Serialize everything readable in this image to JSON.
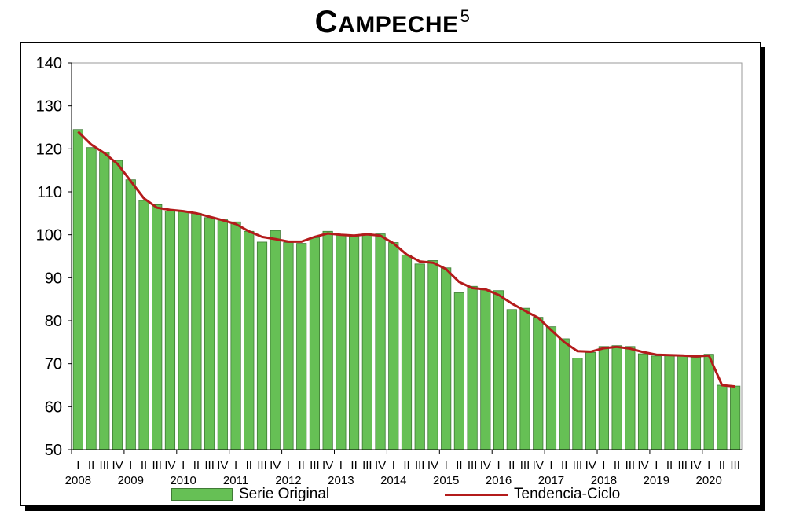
{
  "title": "Campeche",
  "title_superscript": "5",
  "chart_data": {
    "type": "bar",
    "ylim": [
      50,
      140
    ],
    "yticks": [
      50,
      60,
      70,
      80,
      90,
      100,
      110,
      120,
      130,
      140
    ],
    "quarter_labels": [
      "I",
      "II",
      "III",
      "IV",
      "I",
      "II",
      "III",
      "IV",
      "I",
      "II",
      "III",
      "IV",
      "I",
      "II",
      "III",
      "IV",
      "I",
      "II",
      "III",
      "IV",
      "I",
      "II",
      "III",
      "IV",
      "I",
      "II",
      "III",
      "IV",
      "I",
      "II",
      "III",
      "IV",
      "I",
      "II",
      "III",
      "IV",
      "I",
      "II",
      "III",
      "IV",
      "I",
      "II",
      "III",
      "IV",
      "I",
      "II",
      "III",
      "IV",
      "I",
      "II",
      "III"
    ],
    "year_labels": [
      "2008",
      "2009",
      "2010",
      "2011",
      "2012",
      "2013",
      "2014",
      "2015",
      "2016",
      "2017",
      "2018",
      "2019",
      "2020"
    ],
    "grid": false,
    "legend_position": "bottom",
    "series": [
      {
        "name": "Serie Original",
        "type": "bar",
        "color": "#66c055",
        "values": [
          124.5,
          120.3,
          119.2,
          117.3,
          112.8,
          108.0,
          107.0,
          105.5,
          105.5,
          105.0,
          104.0,
          103.5,
          103.0,
          100.8,
          98.3,
          101.0,
          98.2,
          98.0,
          99.3,
          100.8,
          99.9,
          99.8,
          100.2,
          100.2,
          98.2,
          95.3,
          93.2,
          94.0,
          92.3,
          86.5,
          88.0,
          87.2,
          87.0,
          82.6,
          82.9,
          80.8,
          78.6,
          75.8,
          71.3,
          72.6,
          74.0,
          74.2,
          74.0,
          72.3,
          71.8,
          71.9,
          72.0,
          71.5,
          72.2,
          65.0,
          64.8
        ]
      },
      {
        "name": "Tendencia-Ciclo",
        "type": "line",
        "color": "#b31b1b",
        "values": [
          124.0,
          121.0,
          119.0,
          116.5,
          112.5,
          108.5,
          106.3,
          105.8,
          105.5,
          105.0,
          104.2,
          103.4,
          102.5,
          100.8,
          99.5,
          99.0,
          98.4,
          98.4,
          99.5,
          100.3,
          100.0,
          99.8,
          100.1,
          99.8,
          98.0,
          95.4,
          93.8,
          93.5,
          92.0,
          89.0,
          87.6,
          87.3,
          86.0,
          84.0,
          82.3,
          80.7,
          77.8,
          75.0,
          72.9,
          72.8,
          73.6,
          73.9,
          73.5,
          72.7,
          72.1,
          72.0,
          71.9,
          71.7,
          71.9,
          65.0,
          64.7
        ]
      }
    ]
  }
}
